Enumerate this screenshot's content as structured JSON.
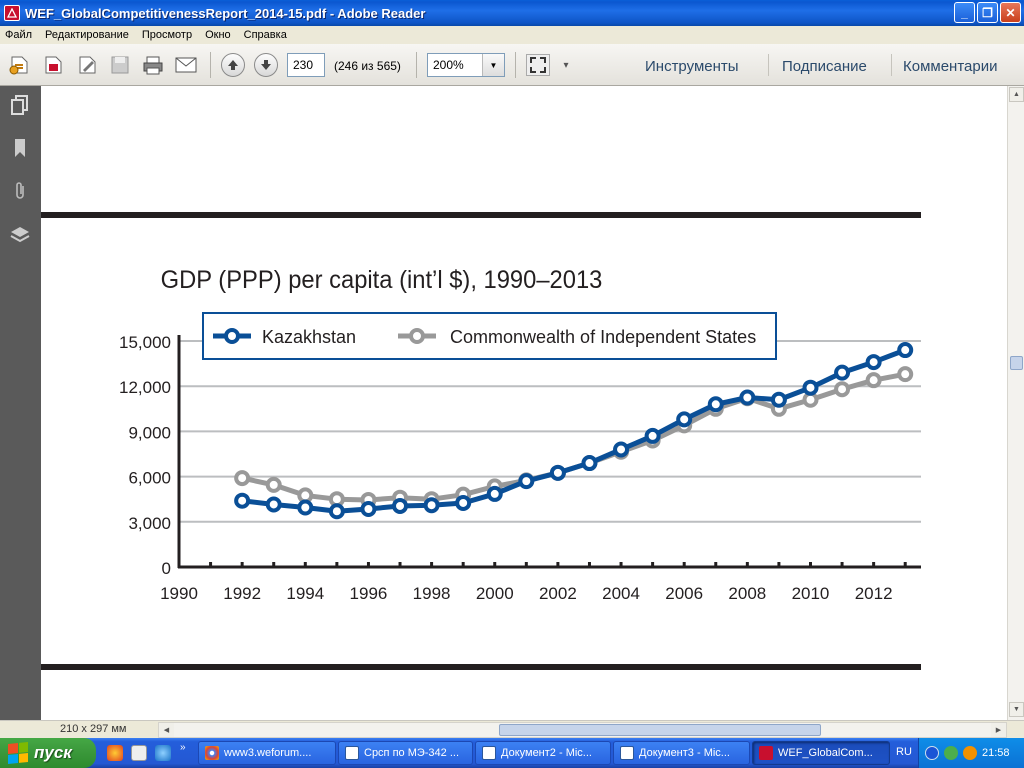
{
  "window": {
    "title": "WEF_GlobalCompetitivenessReport_2014-15.pdf - Adobe Reader",
    "controls": [
      "_",
      "❐",
      "✕"
    ]
  },
  "menu": [
    "Файл",
    "Редактирование",
    "Просмотр",
    "Окно",
    "Справка"
  ],
  "toolbar": {
    "page_value": "230",
    "page_count": "(246 из 565)",
    "zoom_value": "200%",
    "links": [
      "Инструменты",
      "Подписание",
      "Комментарии"
    ]
  },
  "status": {
    "page_size": "210 x 297 мм"
  },
  "chart_data": {
    "type": "line",
    "title": "GDP (PPP) per capita (int’l $), 1990–2013",
    "x": [
      1990,
      1991,
      1992,
      1993,
      1994,
      1995,
      1996,
      1997,
      1998,
      1999,
      2000,
      2001,
      2002,
      2003,
      2004,
      2005,
      2006,
      2007,
      2008,
      2009,
      2010,
      2011,
      2012,
      2013
    ],
    "x_tick_labels": [
      "1990",
      "1992",
      "1994",
      "1996",
      "1998",
      "2000",
      "2002",
      "2004",
      "2006",
      "2008",
      "2010",
      "2012"
    ],
    "y_tick_labels": [
      "0",
      "3,000",
      "6,000",
      "9,000",
      "12,000",
      "15,000"
    ],
    "y_ticks": [
      0,
      3000,
      6000,
      9000,
      12000,
      15000
    ],
    "ylim": [
      0,
      15000
    ],
    "xlim": [
      1990,
      2013.5
    ],
    "grid": "horizontal",
    "legend_position": "top",
    "series": [
      {
        "name": "Kazakhstan",
        "color": "#0a4f97",
        "points": [
          [
            1992,
            4400
          ],
          [
            1993,
            4150
          ],
          [
            1994,
            3950
          ],
          [
            1995,
            3700
          ],
          [
            1996,
            3850
          ],
          [
            1997,
            4050
          ],
          [
            1998,
            4100
          ],
          [
            1999,
            4250
          ],
          [
            2000,
            4850
          ],
          [
            2001,
            5700
          ],
          [
            2002,
            6250
          ],
          [
            2003,
            6900
          ],
          [
            2004,
            7800
          ],
          [
            2005,
            8700
          ],
          [
            2006,
            9800
          ],
          [
            2007,
            10800
          ],
          [
            2008,
            11250
          ],
          [
            2009,
            11100
          ],
          [
            2010,
            11900
          ],
          [
            2011,
            12900
          ],
          [
            2012,
            13600
          ],
          [
            2013,
            14400
          ]
        ]
      },
      {
        "name": "Commonwealth of Independent States",
        "color": "#999999",
        "points": [
          [
            1992,
            5900
          ],
          [
            1993,
            5450
          ],
          [
            1994,
            4750
          ],
          [
            1995,
            4500
          ],
          [
            1996,
            4450
          ],
          [
            1997,
            4600
          ],
          [
            1998,
            4500
          ],
          [
            1999,
            4800
          ],
          [
            2000,
            5350
          ],
          [
            2001,
            5750
          ],
          [
            2002,
            6250
          ],
          [
            2003,
            6900
          ],
          [
            2004,
            7650
          ],
          [
            2005,
            8400
          ],
          [
            2006,
            9400
          ],
          [
            2007,
            10500
          ],
          [
            2008,
            11200
          ],
          [
            2009,
            10500
          ],
          [
            2010,
            11100
          ],
          [
            2011,
            11800
          ],
          [
            2012,
            12400
          ],
          [
            2013,
            12800
          ]
        ]
      }
    ]
  },
  "taskbar": {
    "start": "пуск",
    "tasks": [
      "www3.weforum....",
      "Срсп по МЭ-342 ...",
      "Документ2 - Mic...",
      "Документ3 - Mic...",
      "WEF_GlobalCom..."
    ],
    "lang": "RU",
    "clock": "21:58"
  }
}
